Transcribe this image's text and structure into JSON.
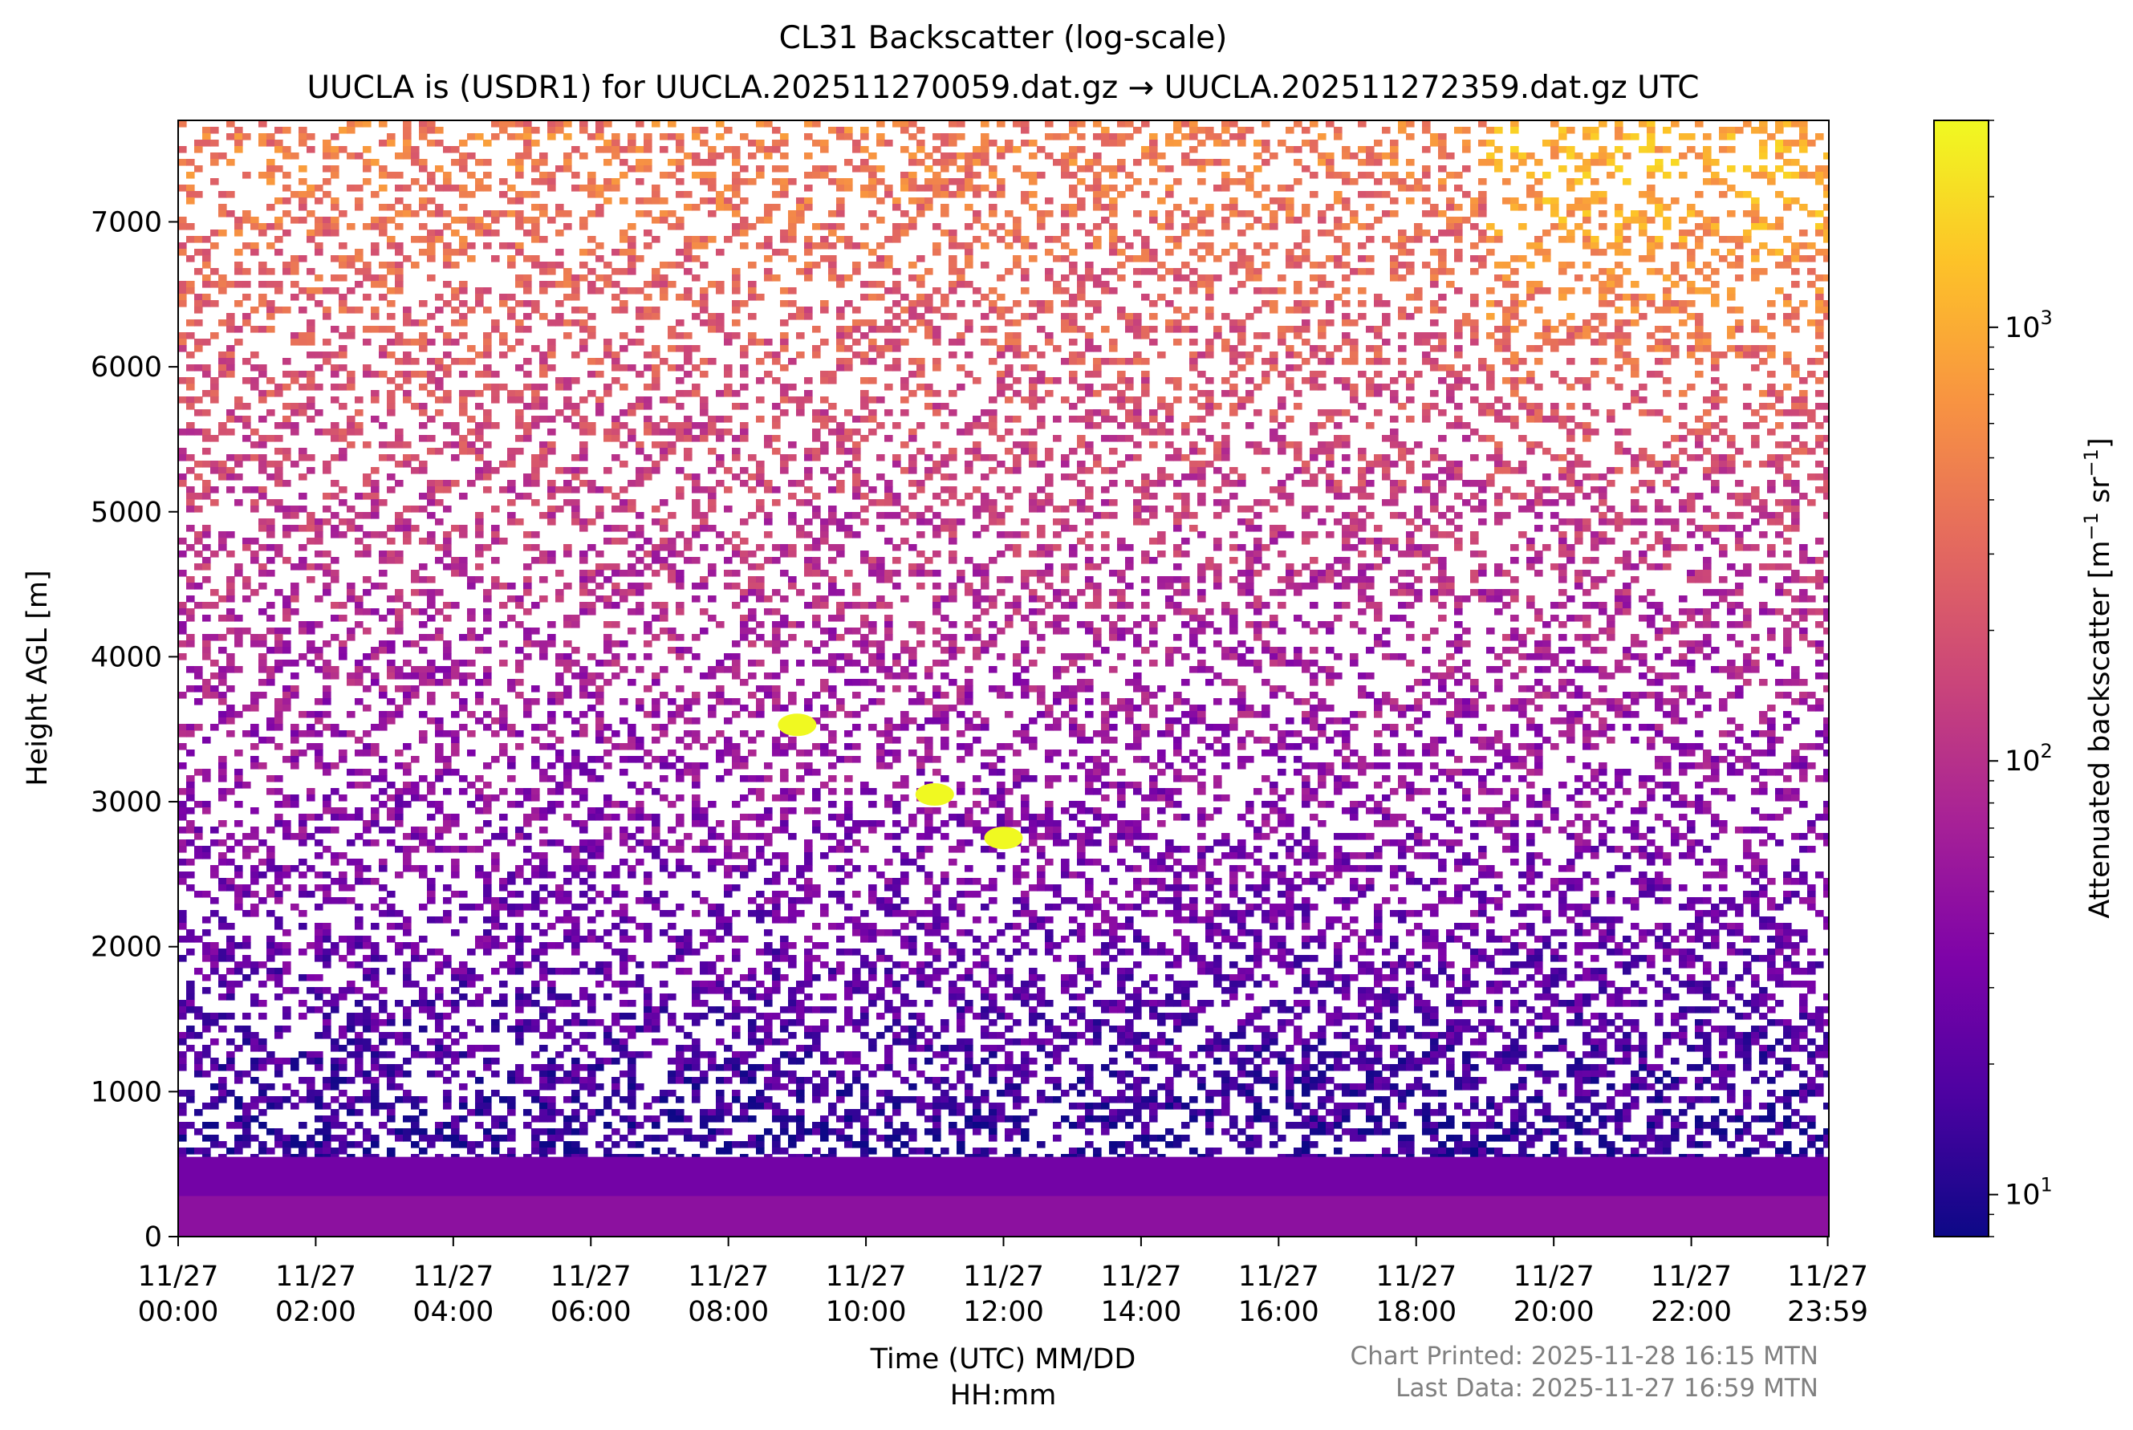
{
  "chart_data": {
    "type": "heatmap",
    "title": "CL31 Backscatter (log-scale)",
    "subtitle": "UUCLA is (USDR1) for UUCLA.202511270059.dat.gz → UUCLA.202511272359.dat.gz UTC",
    "xlabel_line1": "Time (UTC) MM/DD",
    "xlabel_line2": "HH:mm",
    "ylabel": "Height AGL [m]",
    "x_range_hours": [
      0,
      24
    ],
    "x_ticks": [
      {
        "hour": 0,
        "date": "11/27",
        "time": "00:00"
      },
      {
        "hour": 2,
        "date": "11/27",
        "time": "02:00"
      },
      {
        "hour": 4,
        "date": "11/27",
        "time": "04:00"
      },
      {
        "hour": 6,
        "date": "11/27",
        "time": "06:00"
      },
      {
        "hour": 8,
        "date": "11/27",
        "time": "08:00"
      },
      {
        "hour": 10,
        "date": "11/27",
        "time": "10:00"
      },
      {
        "hour": 12,
        "date": "11/27",
        "time": "12:00"
      },
      {
        "hour": 14,
        "date": "11/27",
        "time": "14:00"
      },
      {
        "hour": 16,
        "date": "11/27",
        "time": "16:00"
      },
      {
        "hour": 18,
        "date": "11/27",
        "time": "18:00"
      },
      {
        "hour": 20,
        "date": "11/27",
        "time": "20:00"
      },
      {
        "hour": 22,
        "date": "11/27",
        "time": "22:00"
      },
      {
        "hour": 23.983,
        "date": "11/27",
        "time": "23:59"
      }
    ],
    "ylim": [
      0,
      7700
    ],
    "y_ticks": [
      0,
      1000,
      2000,
      3000,
      4000,
      5000,
      6000,
      7000
    ],
    "colorbar": {
      "label": "Attenuated backscatter [m",
      "label_exp1": "−1",
      "label_mid": " sr",
      "label_exp2": "−1",
      "label_end": "]",
      "scale": "log",
      "range": [
        8,
        3000
      ],
      "colormap": "plasma",
      "ticks": [
        {
          "value": 10,
          "base": "10",
          "exp": "1"
        },
        {
          "value": 100,
          "base": "10",
          "exp": "2"
        },
        {
          "value": 1000,
          "base": "10",
          "exp": "3"
        }
      ]
    },
    "features": [
      {
        "name": "surface layer",
        "x_start_h": 0,
        "x_end_h": 24,
        "y_top_m": 550,
        "backscatter": 30
      },
      {
        "name": "cloud",
        "x_center_h": 9.0,
        "y_center_m": 3530,
        "backscatter": 3000
      },
      {
        "name": "cloud",
        "x_center_h": 11.0,
        "y_center_m": 3050,
        "backscatter": 3000
      },
      {
        "name": "cloud",
        "x_center_h": 12.0,
        "y_center_m": 2750,
        "backscatter": 3000
      }
    ],
    "footer_printed": "Chart Printed: 2025-11-28 16:15 MTN",
    "footer_last_data": "Last Data: 2025-11-27 16:59 MTN",
    "footer_color": "#808080"
  }
}
